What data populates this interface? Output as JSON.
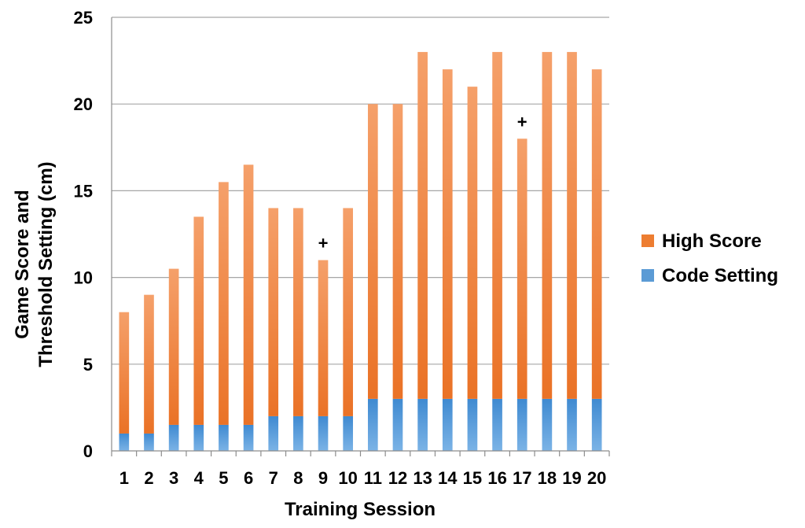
{
  "chart_data": {
    "type": "bar",
    "stacked": true,
    "categories": [
      "1",
      "2",
      "3",
      "4",
      "5",
      "6",
      "7",
      "8",
      "9",
      "10",
      "11",
      "12",
      "13",
      "14",
      "15",
      "16",
      "17",
      "18",
      "19",
      "20"
    ],
    "series": [
      {
        "name": "Code Setting",
        "color": "#5b9bd5",
        "values": [
          1,
          1,
          1.5,
          1.5,
          1.5,
          1.5,
          2,
          2,
          2,
          2,
          3,
          3,
          3,
          3,
          3,
          3,
          3,
          3,
          3,
          3
        ]
      },
      {
        "name": "High Score",
        "color": "#ed7d31",
        "values": [
          7,
          8,
          9,
          12,
          14,
          15,
          12,
          12,
          9,
          12,
          17,
          17,
          20,
          19,
          18,
          20,
          15,
          20,
          20,
          19
        ]
      }
    ],
    "totals": [
      8,
      9,
      10.5,
      13.5,
      15.5,
      16.5,
      14,
      14,
      11,
      14,
      20,
      20,
      23,
      22,
      21,
      23,
      18,
      23,
      23,
      22
    ],
    "xlabel": "Training Session",
    "ylabel_lines": [
      "Game Score and",
      "Threshold Setting (cm)"
    ],
    "ylim": [
      0,
      25
    ],
    "yticks": [
      "0",
      "5",
      "10",
      "15",
      "20",
      "25"
    ],
    "grid": "horizontal",
    "legend": {
      "position": "right",
      "entries": [
        "High Score",
        "Code Setting"
      ]
    },
    "annotations": [
      {
        "category": "9",
        "text": "+"
      },
      {
        "category": "17",
        "text": "+"
      }
    ]
  }
}
